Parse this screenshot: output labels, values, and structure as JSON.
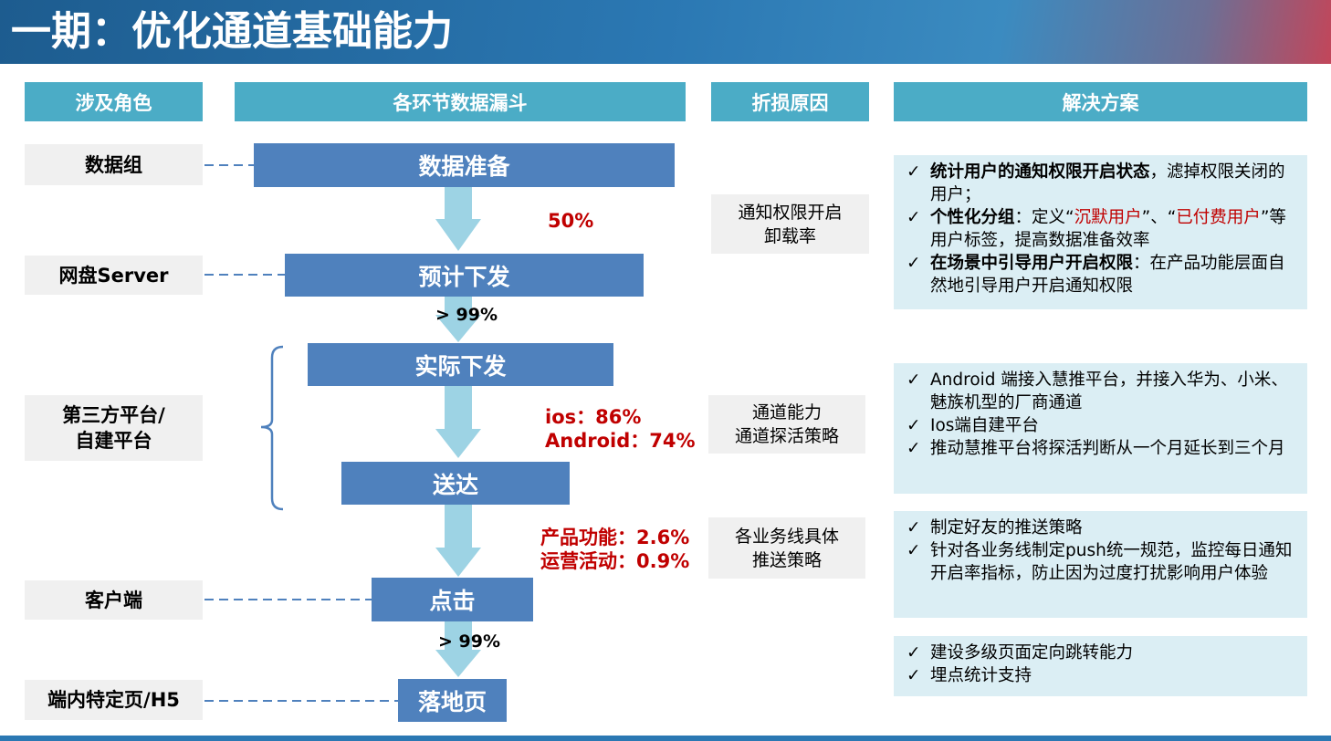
{
  "title": "一期：优化通道基础能力",
  "headers": [
    "涉及角色",
    "各环节数据漏斗",
    "折损原因",
    "解决方案"
  ],
  "roles": [
    [
      "数据组"
    ],
    [
      "网盘Server"
    ],
    [
      "第三方平台/",
      "自建平台"
    ],
    [
      "客户端"
    ],
    [
      "端内特定页/H5"
    ]
  ],
  "funnel": [
    "数据准备",
    "预计下发",
    "实际下发",
    "送达",
    "点击",
    "落地页"
  ],
  "rates": [
    [
      "50%"
    ],
    [
      "> 99%"
    ],
    [
      "ios：86%",
      "Android：74%"
    ],
    [
      "产品功能：2.6%",
      "运营活动：0.9%"
    ],
    [
      "> 99%"
    ]
  ],
  "reasons": [
    [
      "通知权限开启",
      "卸载率"
    ],
    [
      "通道能力",
      "通道探活策略"
    ],
    [
      "各业务线具体",
      "推送策略"
    ]
  ],
  "solutions": [
    [
      [
        "统计用户的通知权限开启状态",
        "，滤掉权限关闭的用户；"
      ],
      [
        "个性化分组",
        "：定义“",
        "沉默用户",
        "”、“",
        "已付费用户",
        "”等用户标签，提高数据准备效率"
      ],
      [
        "在场景中引导用户开启权限",
        "：在产品功能层面自然地引导用户开启通知权限"
      ]
    ],
    [
      [
        "Android 端接入慧推平台，并接入华为、小米、魅族机型的厂商通道"
      ],
      [
        "Ios端自建平台"
      ],
      [
        "推动慧推平台将探活判断从一个月延长到三个月"
      ]
    ],
    [
      [
        "制定好友的推送策略"
      ],
      [
        "针对各业务线制定push统一规范，监控每日通知开启率指标，防止因为过度打扰影响用户体验"
      ]
    ],
    [
      [
        "建设多级页面定向跳转能力"
      ],
      [
        "埋点统计支持"
      ]
    ]
  ]
}
